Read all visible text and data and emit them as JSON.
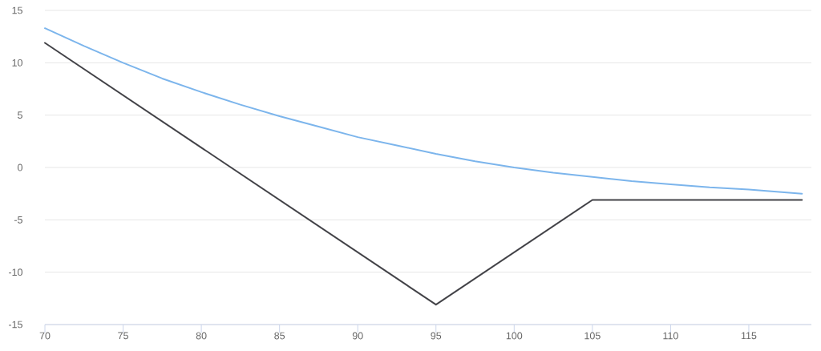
{
  "chart_data": {
    "type": "line",
    "series": [
      {
        "color": "#7cb5ec",
        "x": [
          70,
          72.5,
          75,
          77.5,
          80,
          82.5,
          85,
          87.5,
          90,
          92.5,
          95,
          97.5,
          100,
          102.5,
          105,
          107.5,
          110,
          112.5,
          115,
          118.4
        ],
        "values": [
          13.3,
          11.6,
          10.0,
          8.5,
          7.2,
          6.0,
          4.9,
          3.9,
          2.9,
          2.1,
          1.3,
          0.6,
          0.0,
          -0.5,
          -0.9,
          -1.3,
          -1.6,
          -1.9,
          -2.1,
          -2.5
        ]
      },
      {
        "color": "#434348",
        "x": [
          70,
          95,
          105,
          118.4
        ],
        "values": [
          11.9,
          -13.1,
          -3.1,
          -3.1
        ]
      }
    ],
    "xlim": [
      70,
      119
    ],
    "ylim": [
      -15,
      15
    ],
    "xticks": [
      70,
      75,
      80,
      85,
      90,
      95,
      100,
      105,
      110,
      115
    ],
    "yticks": [
      -15,
      -10,
      -5,
      0,
      5,
      10,
      15
    ],
    "grid": "y"
  }
}
